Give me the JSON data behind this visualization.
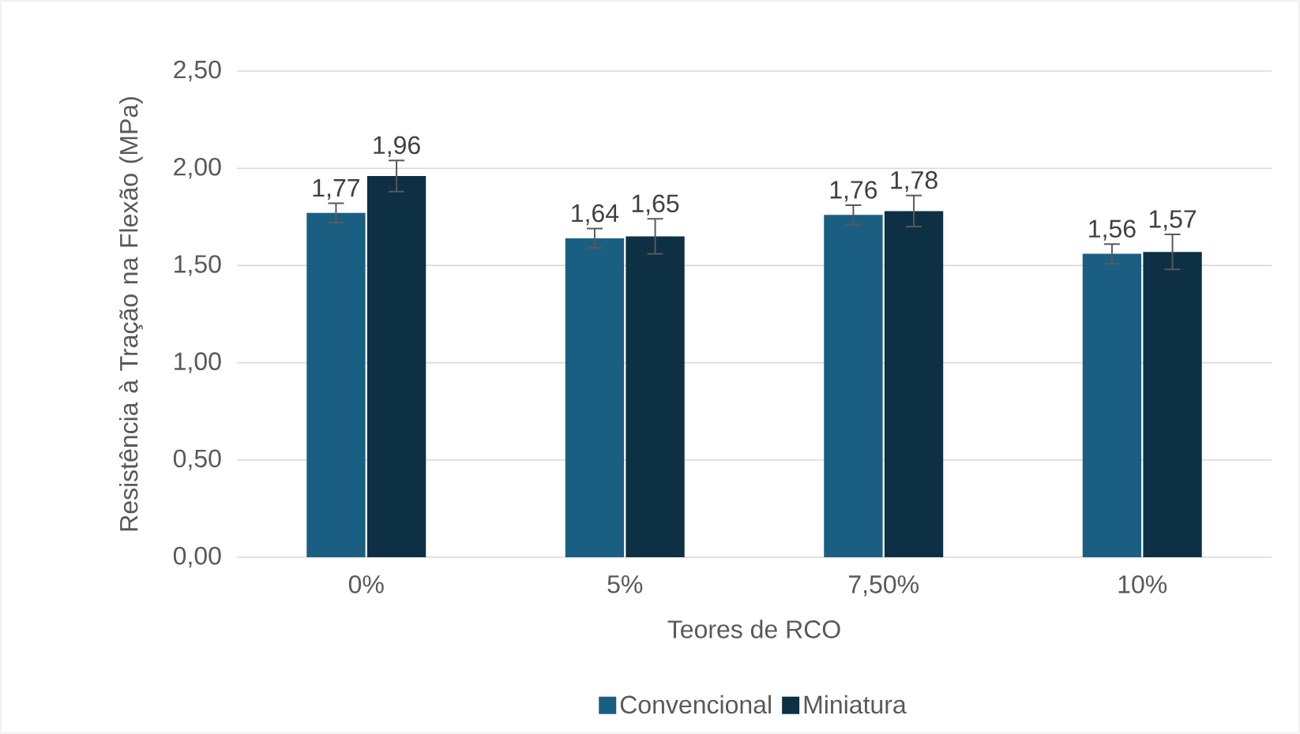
{
  "chart_data": {
    "type": "bar",
    "xlabel": "Teores de RCO",
    "ylabel": "Resistência à Tração na Flexão (MPa)",
    "categories": [
      "0%",
      "5%",
      "7,50%",
      "10%"
    ],
    "series": [
      {
        "name": "Convencional",
        "color": "#1a5f82",
        "values": [
          1.77,
          1.64,
          1.76,
          1.56
        ],
        "errors": [
          0.05,
          0.05,
          0.05,
          0.05
        ],
        "value_labels": [
          "1,77",
          "1,64",
          "1,76",
          "1,56"
        ]
      },
      {
        "name": "Miniatura",
        "color": "#0d3044",
        "values": [
          1.96,
          1.65,
          1.78,
          1.57
        ],
        "errors": [
          0.08,
          0.09,
          0.08,
          0.09
        ],
        "value_labels": [
          "1,96",
          "1,65",
          "1,78",
          "1,57"
        ]
      }
    ],
    "ylim": [
      0,
      2.5
    ],
    "yticks": [
      {
        "value": 0,
        "label": "0,00"
      },
      {
        "value": 0.5,
        "label": "0,50"
      },
      {
        "value": 1,
        "label": "1,00"
      },
      {
        "value": 1.5,
        "label": "1,50"
      },
      {
        "value": 2,
        "label": "2,00"
      },
      {
        "value": 2.5,
        "label": "2,50"
      }
    ],
    "grid": "y",
    "legend": "bottom"
  }
}
